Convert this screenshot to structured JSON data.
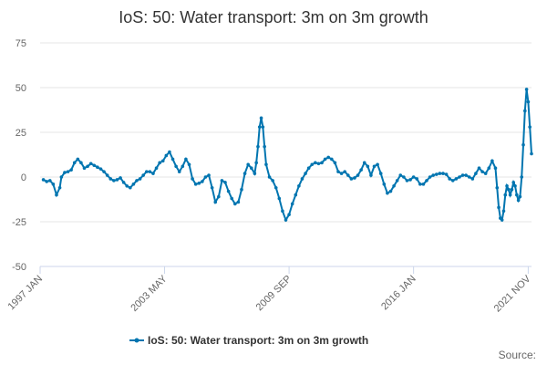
{
  "chart_data": {
    "type": "line",
    "title": "IoS: 50: Water transport: 3m on 3m growth",
    "xlabel": "",
    "ylabel": "",
    "ylim": [
      -50,
      75
    ],
    "yticks": [
      75,
      50,
      25,
      0,
      -25,
      -50
    ],
    "x_start": "1997 JAN",
    "x_end": "2022 JAN",
    "x_ticks": [
      {
        "label": "1997 JAN",
        "date": "1997-01"
      },
      {
        "label": "2003 MAY",
        "date": "2003-05"
      },
      {
        "label": "2009 SEP",
        "date": "2009-09"
      },
      {
        "label": "2016 JAN",
        "date": "2016-01"
      },
      {
        "label": "2021 NOV",
        "date": "2021-11"
      }
    ],
    "legend_position": "bottom-center",
    "source_label": "Source:",
    "series": [
      {
        "name": "IoS: 50: Water transport: 3m on 3m growth",
        "color": "#0075b0",
        "points": [
          [
            "1997-03",
            -1.5
          ],
          [
            "1997-05",
            -2.5
          ],
          [
            "1997-07",
            -2
          ],
          [
            "1997-09",
            -4
          ],
          [
            "1997-11",
            -10
          ],
          [
            "1998-01",
            -6
          ],
          [
            "1998-02",
            0
          ],
          [
            "1998-04",
            2.5
          ],
          [
            "1998-06",
            3
          ],
          [
            "1998-08",
            4
          ],
          [
            "1998-10",
            8
          ],
          [
            "1998-12",
            10
          ],
          [
            "1999-02",
            8
          ],
          [
            "1999-04",
            5
          ],
          [
            "1999-06",
            6
          ],
          [
            "1999-08",
            7.5
          ],
          [
            "1999-10",
            6.5
          ],
          [
            "1999-12",
            5.5
          ],
          [
            "2000-02",
            4.5
          ],
          [
            "2000-04",
            3
          ],
          [
            "2000-06",
            1
          ],
          [
            "2000-08",
            -1
          ],
          [
            "2000-10",
            -2
          ],
          [
            "2000-12",
            -1.5
          ],
          [
            "2001-02",
            -0.5
          ],
          [
            "2001-04",
            -3
          ],
          [
            "2001-06",
            -5
          ],
          [
            "2001-08",
            -6
          ],
          [
            "2001-10",
            -4
          ],
          [
            "2001-12",
            -2
          ],
          [
            "2002-02",
            -1
          ],
          [
            "2002-04",
            1
          ],
          [
            "2002-06",
            3
          ],
          [
            "2002-08",
            3
          ],
          [
            "2002-10",
            2
          ],
          [
            "2002-12",
            5
          ],
          [
            "2003-02",
            8
          ],
          [
            "2003-04",
            9
          ],
          [
            "2003-06",
            12
          ],
          [
            "2003-08",
            14
          ],
          [
            "2003-10",
            10
          ],
          [
            "2003-12",
            6
          ],
          [
            "2004-02",
            3
          ],
          [
            "2004-04",
            6
          ],
          [
            "2004-06",
            10
          ],
          [
            "2004-08",
            7
          ],
          [
            "2004-10",
            -1
          ],
          [
            "2004-12",
            -4
          ],
          [
            "2005-02",
            -3.5
          ],
          [
            "2005-04",
            -2.5
          ],
          [
            "2005-06",
            0
          ],
          [
            "2005-08",
            1
          ],
          [
            "2005-10",
            -6
          ],
          [
            "2005-12",
            -14
          ],
          [
            "2006-02",
            -11
          ],
          [
            "2006-04",
            -2
          ],
          [
            "2006-06",
            -3
          ],
          [
            "2006-08",
            -8
          ],
          [
            "2006-10",
            -12
          ],
          [
            "2006-12",
            -15
          ],
          [
            "2007-02",
            -14
          ],
          [
            "2007-04",
            -7
          ],
          [
            "2007-06",
            2
          ],
          [
            "2007-08",
            7
          ],
          [
            "2007-10",
            5
          ],
          [
            "2007-12",
            2
          ],
          [
            "2008-01",
            8
          ],
          [
            "2008-02",
            17
          ],
          [
            "2008-03",
            28
          ],
          [
            "2008-04",
            33
          ],
          [
            "2008-05",
            28
          ],
          [
            "2008-06",
            17
          ],
          [
            "2008-07",
            7
          ],
          [
            "2008-09",
            0
          ],
          [
            "2008-11",
            -2
          ],
          [
            "2009-01",
            -6
          ],
          [
            "2009-03",
            -12
          ],
          [
            "2009-05",
            -19
          ],
          [
            "2009-07",
            -24
          ],
          [
            "2009-09",
            -21
          ],
          [
            "2009-11",
            -15
          ],
          [
            "2010-01",
            -10
          ],
          [
            "2010-03",
            -5
          ],
          [
            "2010-05",
            -1
          ],
          [
            "2010-07",
            2
          ],
          [
            "2010-09",
            5
          ],
          [
            "2010-11",
            7
          ],
          [
            "2011-01",
            8
          ],
          [
            "2011-03",
            7.5
          ],
          [
            "2011-05",
            8
          ],
          [
            "2011-07",
            10
          ],
          [
            "2011-09",
            11
          ],
          [
            "2011-11",
            10
          ],
          [
            "2012-01",
            8
          ],
          [
            "2012-03",
            3
          ],
          [
            "2012-05",
            2
          ],
          [
            "2012-07",
            3
          ],
          [
            "2012-09",
            1
          ],
          [
            "2012-11",
            -1
          ],
          [
            "2013-01",
            -0.5
          ],
          [
            "2013-03",
            1
          ],
          [
            "2013-05",
            4
          ],
          [
            "2013-07",
            8
          ],
          [
            "2013-09",
            6
          ],
          [
            "2013-11",
            1
          ],
          [
            "2014-01",
            6
          ],
          [
            "2014-03",
            7
          ],
          [
            "2014-05",
            2
          ],
          [
            "2014-07",
            -4
          ],
          [
            "2014-09",
            -9
          ],
          [
            "2014-11",
            -8
          ],
          [
            "2015-01",
            -5
          ],
          [
            "2015-03",
            -2
          ],
          [
            "2015-05",
            1
          ],
          [
            "2015-07",
            0
          ],
          [
            "2015-09",
            -2
          ],
          [
            "2015-11",
            -1.5
          ],
          [
            "2016-01",
            0
          ],
          [
            "2016-03",
            -1
          ],
          [
            "2016-05",
            -4
          ],
          [
            "2016-07",
            -4
          ],
          [
            "2016-09",
            -2
          ],
          [
            "2016-11",
            0
          ],
          [
            "2017-01",
            1
          ],
          [
            "2017-03",
            1.5
          ],
          [
            "2017-05",
            2
          ],
          [
            "2017-07",
            2
          ],
          [
            "2017-09",
            1.5
          ],
          [
            "2017-11",
            -1
          ],
          [
            "2018-01",
            -2
          ],
          [
            "2018-03",
            -1
          ],
          [
            "2018-05",
            0
          ],
          [
            "2018-07",
            1
          ],
          [
            "2018-09",
            1
          ],
          [
            "2018-11",
            0
          ],
          [
            "2019-01",
            -1
          ],
          [
            "2019-03",
            2
          ],
          [
            "2019-05",
            5
          ],
          [
            "2019-07",
            3
          ],
          [
            "2019-09",
            2
          ],
          [
            "2019-11",
            5
          ],
          [
            "2020-01",
            9
          ],
          [
            "2020-03",
            5
          ],
          [
            "2020-04",
            -6
          ],
          [
            "2020-05",
            -17
          ],
          [
            "2020-06",
            -23
          ],
          [
            "2020-07",
            -24
          ],
          [
            "2020-08",
            -19
          ],
          [
            "2020-09",
            -10
          ],
          [
            "2020-10",
            -5
          ],
          [
            "2020-11",
            -7
          ],
          [
            "2020-12",
            -10
          ],
          [
            "2021-01",
            -7
          ],
          [
            "2021-02",
            -3
          ],
          [
            "2021-03",
            -5
          ],
          [
            "2021-04",
            -10
          ],
          [
            "2021-05",
            -13
          ],
          [
            "2021-06",
            -11
          ],
          [
            "2021-07",
            0
          ],
          [
            "2021-08",
            18
          ],
          [
            "2021-09",
            37
          ],
          [
            "2021-10",
            49
          ],
          [
            "2021-11",
            42
          ],
          [
            "2021-12",
            28
          ],
          [
            "2022-01",
            13
          ]
        ]
      }
    ]
  }
}
